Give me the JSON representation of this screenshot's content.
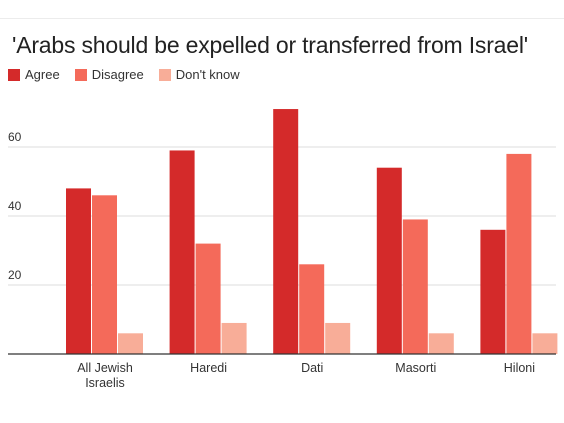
{
  "chart_data": {
    "type": "bar",
    "title": "'Arabs should be expelled or transferred from Israel'",
    "categories": [
      [
        "All Jewish",
        "Israelis"
      ],
      [
        "Haredi"
      ],
      [
        "Dati"
      ],
      [
        "Masorti"
      ],
      [
        "Hiloni"
      ]
    ],
    "series": [
      {
        "name": "Agree",
        "color": "#d42a2a",
        "values": [
          48,
          59,
          71,
          54,
          36
        ]
      },
      {
        "name": "Disagree",
        "color": "#f46a5a",
        "values": [
          46,
          32,
          26,
          39,
          58
        ]
      },
      {
        "name": "Don't know",
        "color": "#f8ad98",
        "values": [
          6,
          9,
          9,
          6,
          6
        ]
      }
    ],
    "yticks": [
      20,
      40,
      60
    ],
    "ylim": [
      0,
      76
    ],
    "grid": true,
    "legend_position": "top-left",
    "xlabel": "",
    "ylabel": ""
  }
}
